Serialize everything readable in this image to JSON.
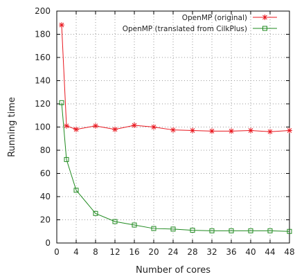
{
  "chart_data": {
    "type": "line",
    "xlabel": "Number of cores",
    "ylabel": "Running time",
    "xlim": [
      0,
      48
    ],
    "ylim": [
      0,
      200
    ],
    "x_ticks": [
      0,
      4,
      8,
      12,
      16,
      20,
      24,
      28,
      32,
      36,
      40,
      44,
      48
    ],
    "y_ticks": [
      0,
      20,
      40,
      60,
      80,
      100,
      120,
      140,
      160,
      180,
      200
    ],
    "x_tick_labels": [
      "0",
      "4",
      "8",
      "12",
      "16",
      "20",
      "24",
      "28",
      "32",
      "36",
      "40",
      "44",
      "48"
    ],
    "y_tick_labels": [
      "0",
      "20",
      "40",
      "60",
      "80",
      "100",
      "120",
      "140",
      "160",
      "180",
      "200"
    ],
    "grid": true,
    "legend_position": "top-right",
    "series": [
      {
        "name": "OpenMP (original)",
        "color": "#e8161e",
        "marker": "asterisk",
        "x": [
          1,
          2,
          4,
          8,
          12,
          16,
          20,
          24,
          28,
          32,
          36,
          40,
          44,
          48
        ],
        "y": [
          188,
          101,
          98,
          101,
          98,
          101.5,
          100,
          97.5,
          97,
          96.5,
          96.5,
          97,
          96,
          97
        ]
      },
      {
        "name": "OpenMP (translated from CilkPlus)",
        "color": "#1f8a1f",
        "marker": "square",
        "x": [
          1,
          2,
          4,
          8,
          12,
          16,
          20,
          24,
          28,
          32,
          36,
          40,
          44,
          48
        ],
        "y": [
          121,
          72,
          45.5,
          25.5,
          18.5,
          15.5,
          12.5,
          12,
          11,
          10.5,
          10.5,
          10.5,
          10.5,
          10
        ]
      }
    ]
  }
}
